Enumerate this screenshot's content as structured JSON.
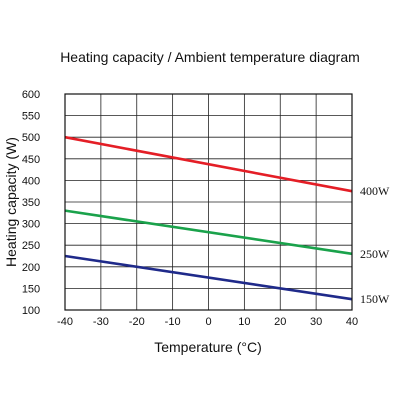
{
  "chart_data": {
    "type": "line",
    "title": "Heating capacity / Ambient temperature diagram",
    "xlabel": "Temperature (°C)",
    "ylabel": "Heating capacity (W)",
    "xlim": [
      -40,
      40
    ],
    "ylim": [
      100,
      600
    ],
    "x_ticks": [
      -40,
      -30,
      -20,
      -10,
      0,
      10,
      20,
      30,
      40
    ],
    "y_ticks": [
      100,
      150,
      200,
      250,
      300,
      350,
      400,
      450,
      500,
      550,
      600
    ],
    "grid": true,
    "legend": "none",
    "series": [
      {
        "name": "400W",
        "color": "#e41e26",
        "x": [
          -40,
          40
        ],
        "y": [
          500,
          375
        ]
      },
      {
        "name": "250W",
        "color": "#1aa24b",
        "x": [
          -40,
          40
        ],
        "y": [
          330,
          230
        ]
      },
      {
        "name": "150W",
        "color": "#1f2a8a",
        "x": [
          -40,
          40
        ],
        "y": [
          225,
          125
        ]
      }
    ]
  }
}
